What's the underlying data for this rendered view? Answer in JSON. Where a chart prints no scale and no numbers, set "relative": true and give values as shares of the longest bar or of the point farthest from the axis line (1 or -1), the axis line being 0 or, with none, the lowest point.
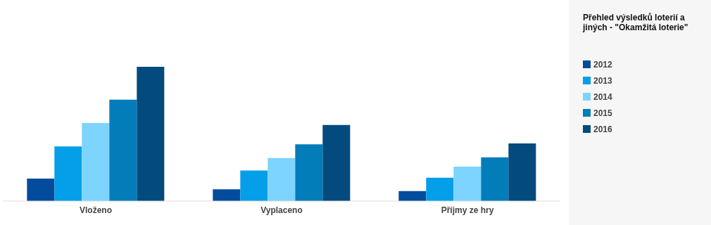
{
  "chart_data": {
    "type": "bar",
    "title": "Přehled výsledků loterií a jiných - \"Okamžitá loterie\"",
    "categories": [
      "Vloženo",
      "Vyplaceno",
      "Příjmy ze hry"
    ],
    "series": [
      {
        "name": "2012",
        "color": "#034c9c",
        "values": [
          0.168,
          0.087,
          0.075
        ]
      },
      {
        "name": "2013",
        "color": "#049fe8",
        "values": [
          0.407,
          0.228,
          0.174
        ]
      },
      {
        "name": "2014",
        "color": "#7dd4fe",
        "values": [
          0.581,
          0.32,
          0.257
        ]
      },
      {
        "name": "2015",
        "color": "#037cba",
        "values": [
          0.755,
          0.423,
          0.326
        ]
      },
      {
        "name": "2016",
        "color": "#034b7e",
        "values": [
          1,
          0.566,
          0.429
        ]
      }
    ],
    "relative": true,
    "legend": "right"
  }
}
